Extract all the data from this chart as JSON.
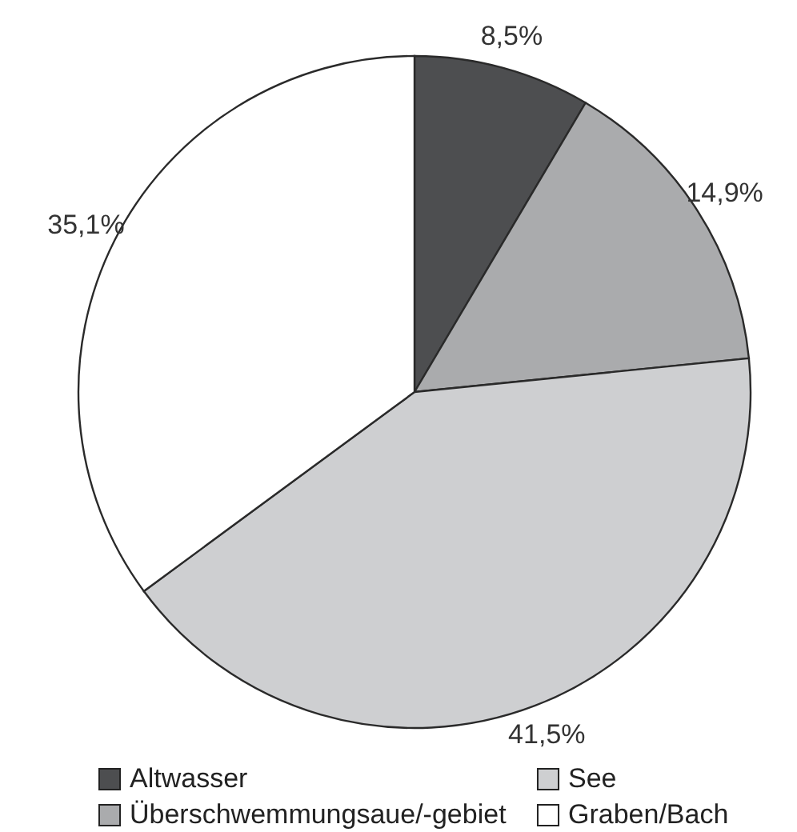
{
  "chart_data": {
    "type": "pie",
    "categories": [
      "Altwasser",
      "Überschwemmungsaue/-gebiet",
      "See",
      "Graben/Bach"
    ],
    "values": [
      8.5,
      14.9,
      41.5,
      35.1
    ],
    "colors": [
      "#4d4e50",
      "#aaabad",
      "#cecfd1",
      "#ffffff"
    ],
    "value_labels": [
      "8,5%",
      "14,9%",
      "41,5%",
      "35,1%"
    ],
    "legend": "bottom"
  }
}
